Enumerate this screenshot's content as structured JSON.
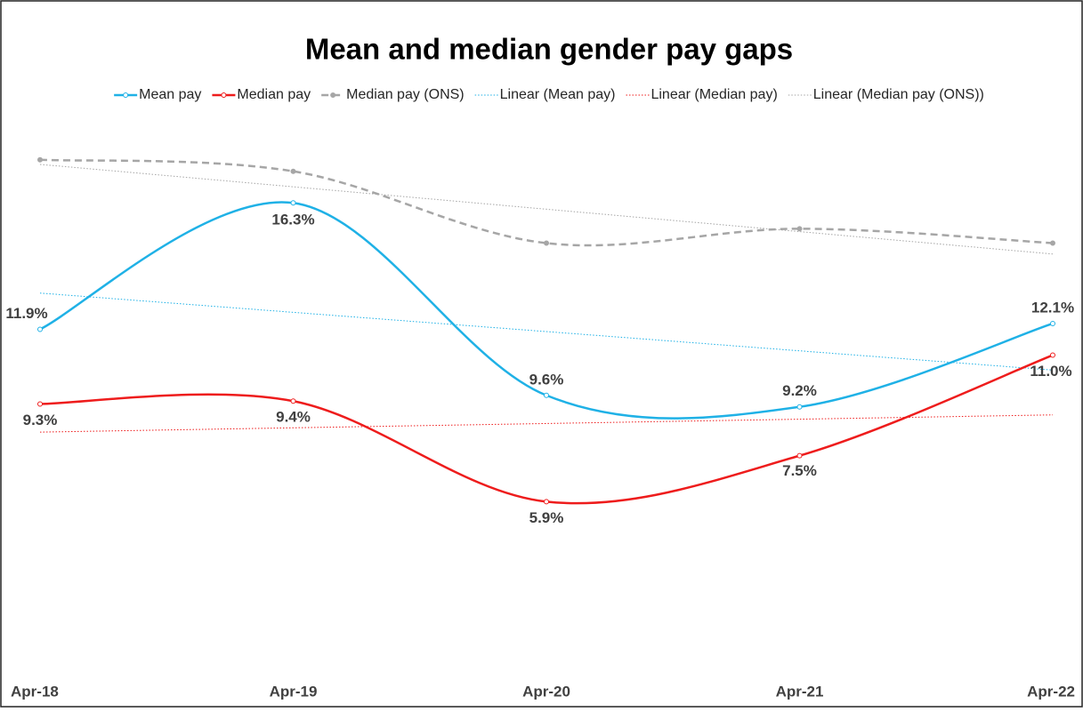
{
  "chart_data": {
    "type": "line",
    "title": "Mean and median gender pay gaps",
    "categories": [
      "Apr-18",
      "Apr-19",
      "Apr-20",
      "Apr-21",
      "Apr-22"
    ],
    "ylim": [
      0,
      19
    ],
    "smooth": true,
    "series": [
      {
        "name": "Mean pay",
        "color": "#1fb1e6",
        "dash": "solid",
        "values": [
          11.9,
          16.3,
          9.6,
          9.2,
          12.1
        ],
        "value_labels": [
          "11.9%",
          "16.3%",
          "9.6%",
          "9.2%",
          "12.1%"
        ],
        "trendline_name": "Linear (Mean pay)"
      },
      {
        "name": "Median pay",
        "color": "#ee1c1c",
        "dash": "solid",
        "values": [
          9.3,
          9.4,
          5.9,
          7.5,
          11.0
        ],
        "value_labels": [
          "9.3%",
          "9.4%",
          "5.9%",
          "7.5%",
          "11.0%"
        ],
        "trendline_name": "Linear (Median pay)"
      },
      {
        "name": "Median pay (ONS)",
        "color": "#a6a6a6",
        "dash": "dashed",
        "values": [
          17.8,
          17.4,
          14.9,
          15.4,
          14.9
        ],
        "trendline_name": "Linear (Median pay (ONS))"
      }
    ]
  }
}
